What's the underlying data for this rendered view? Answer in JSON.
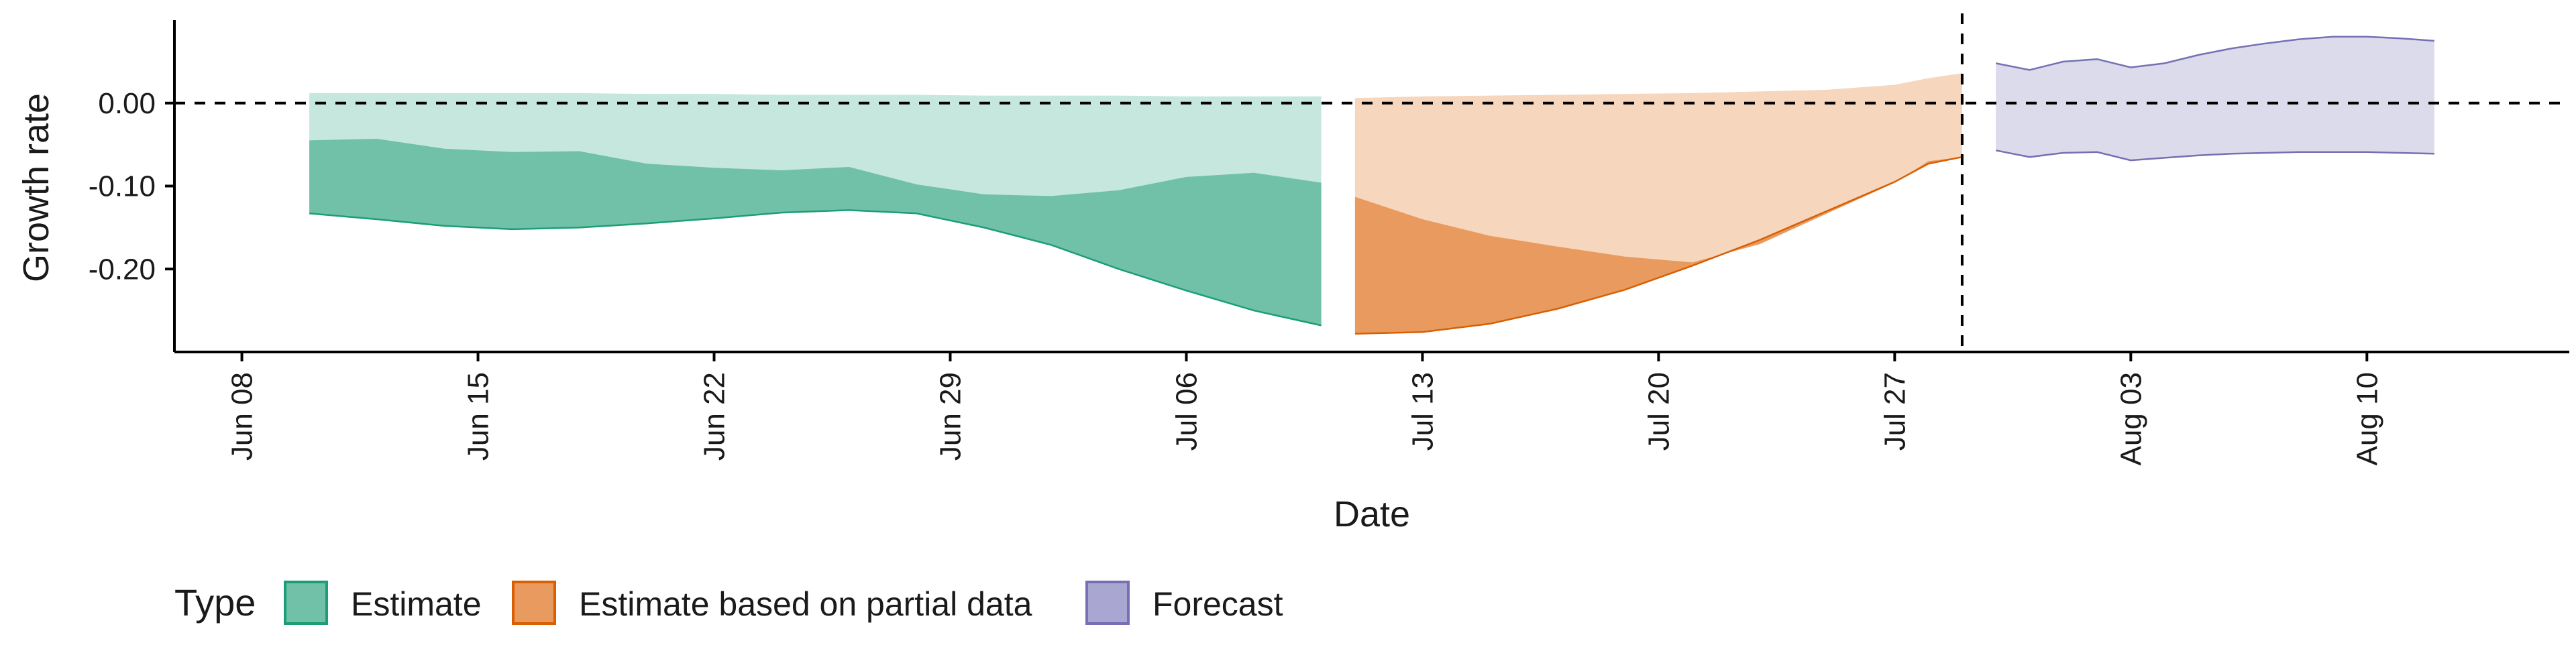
{
  "chart_data": {
    "type": "area",
    "xlabel": "Date",
    "ylabel": "Growth rate",
    "xlim": [
      "2020-06-06",
      "2020-08-16"
    ],
    "ylim": [
      -0.3,
      0.1
    ],
    "y_ticks": [
      0.0,
      -0.1,
      -0.2
    ],
    "y_tick_labels": [
      "0.00",
      "-0.10",
      "-0.20"
    ],
    "x_ticks": [
      "2020-06-08",
      "2020-06-15",
      "2020-06-22",
      "2020-06-29",
      "2020-07-06",
      "2020-07-13",
      "2020-07-20",
      "2020-07-27",
      "2020-08-03",
      "2020-08-10"
    ],
    "x_tick_labels": [
      "Jun 08",
      "Jun 15",
      "Jun 22",
      "Jun 29",
      "Jul 06",
      "Jul 13",
      "Jul 20",
      "Jul 27",
      "Aug 03",
      "Aug 10"
    ],
    "reference_lines": {
      "horizontal_y": 0.0,
      "vertical_date": "2020-07-29"
    },
    "legend": {
      "title": "Type",
      "position": "bottom",
      "entries": [
        {
          "label": "Estimate",
          "color": "#70c1a7",
          "stroke": "#1b9e77"
        },
        {
          "label": "Estimate based on partial data",
          "color": "#e89a5f",
          "stroke": "#d95f02"
        },
        {
          "label": "Forecast",
          "color": "#a9a6d2",
          "stroke": "#7570b3"
        }
      ]
    },
    "series": [
      {
        "name": "Estimate",
        "color_outer": "#c6e7dd",
        "color_inner": "#70c1a7",
        "stroke": "#1b9e77",
        "x": [
          "2020-06-10",
          "2020-06-12",
          "2020-06-14",
          "2020-06-16",
          "2020-06-18",
          "2020-06-20",
          "2020-06-22",
          "2020-06-24",
          "2020-06-26",
          "2020-06-28",
          "2020-06-30",
          "2020-07-02",
          "2020-07-04",
          "2020-07-06",
          "2020-07-08",
          "2020-07-10"
        ],
        "outer_upper": [
          0.012,
          0.012,
          0.012,
          0.012,
          0.012,
          0.011,
          0.011,
          0.01,
          0.01,
          0.01,
          0.009,
          0.009,
          0.009,
          0.008,
          0.008,
          0.008
        ],
        "inner_upper": [
          -0.045,
          -0.043,
          -0.055,
          -0.059,
          -0.058,
          -0.073,
          -0.078,
          -0.081,
          -0.077,
          -0.098,
          -0.11,
          -0.112,
          -0.105,
          -0.089,
          -0.084,
          -0.096
        ],
        "inner_lower": [
          -0.133,
          -0.14,
          -0.148,
          -0.152,
          -0.15,
          -0.145,
          -0.139,
          -0.132,
          -0.129,
          -0.133,
          -0.15,
          -0.171,
          -0.2,
          -0.226,
          -0.25,
          -0.268
        ],
        "outer_lower": [
          -0.133,
          -0.14,
          -0.148,
          -0.152,
          -0.15,
          -0.145,
          -0.139,
          -0.132,
          -0.129,
          -0.133,
          -0.15,
          -0.171,
          -0.2,
          -0.226,
          -0.25,
          -0.268
        ]
      },
      {
        "name": "Estimate based on partial data",
        "color_outer": "#f6d6bd",
        "color_inner": "#e89a5f",
        "stroke": "#d95f02",
        "x": [
          "2020-07-11",
          "2020-07-13",
          "2020-07-15",
          "2020-07-17",
          "2020-07-19",
          "2020-07-21",
          "2020-07-23",
          "2020-07-25",
          "2020-07-27",
          "2020-07-28",
          "2020-07-29"
        ],
        "outer_upper": [
          0.006,
          0.008,
          0.009,
          0.01,
          0.011,
          0.012,
          0.014,
          0.016,
          0.022,
          0.03,
          0.036
        ],
        "inner_upper": [
          -0.113,
          -0.14,
          -0.16,
          -0.173,
          -0.185,
          -0.192,
          -0.17,
          -0.133,
          -0.096,
          -0.07,
          -0.065
        ],
        "inner_lower": [
          -0.278,
          -0.276,
          -0.266,
          -0.248,
          -0.225,
          -0.196,
          -0.165,
          -0.13,
          -0.095,
          -0.073,
          -0.065
        ],
        "outer_lower": [
          -0.278,
          -0.276,
          -0.266,
          -0.248,
          -0.225,
          -0.196,
          -0.165,
          -0.13,
          -0.095,
          -0.073,
          -0.065
        ]
      },
      {
        "name": "Forecast",
        "color_outer": "#dcdbec",
        "stroke": "#7570b3",
        "x": [
          "2020-07-30",
          "2020-07-31",
          "2020-08-01",
          "2020-08-02",
          "2020-08-03",
          "2020-08-04",
          "2020-08-05",
          "2020-08-06",
          "2020-08-07",
          "2020-08-08",
          "2020-08-09",
          "2020-08-10",
          "2020-08-11",
          "2020-08-12"
        ],
        "outer_upper": [
          0.048,
          0.04,
          0.05,
          0.053,
          0.043,
          0.048,
          0.058,
          0.066,
          0.072,
          0.077,
          0.08,
          0.08,
          0.078,
          0.075
        ],
        "outer_lower": [
          -0.057,
          -0.065,
          -0.06,
          -0.059,
          -0.069,
          -0.066,
          -0.063,
          -0.061,
          -0.06,
          -0.059,
          -0.059,
          -0.059,
          -0.06,
          -0.061
        ]
      }
    ]
  }
}
